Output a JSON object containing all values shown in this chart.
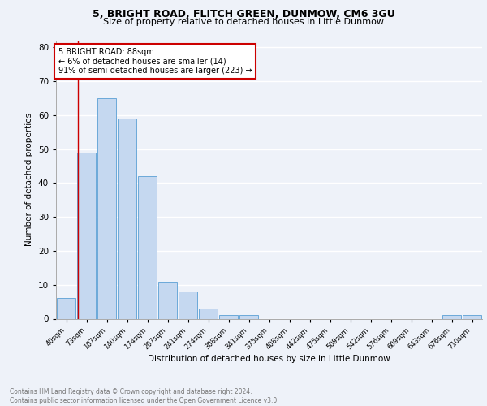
{
  "title1": "5, BRIGHT ROAD, FLITCH GREEN, DUNMOW, CM6 3GU",
  "title2": "Size of property relative to detached houses in Little Dunmow",
  "xlabel": "Distribution of detached houses by size in Little Dunmow",
  "ylabel": "Number of detached properties",
  "bar_labels": [
    "40sqm",
    "73sqm",
    "107sqm",
    "140sqm",
    "174sqm",
    "207sqm",
    "241sqm",
    "274sqm",
    "308sqm",
    "341sqm",
    "375sqm",
    "408sqm",
    "442sqm",
    "475sqm",
    "509sqm",
    "542sqm",
    "576sqm",
    "609sqm",
    "643sqm",
    "676sqm",
    "710sqm"
  ],
  "bar_values": [
    6,
    49,
    65,
    59,
    42,
    11,
    8,
    3,
    1,
    1,
    0,
    0,
    0,
    0,
    0,
    0,
    0,
    0,
    0,
    1,
    1
  ],
  "bar_color": "#c5d8f0",
  "bar_edge_color": "#5a9fd4",
  "vline_color": "#cc0000",
  "annotation_text": "5 BRIGHT ROAD: 88sqm\n← 6% of detached houses are smaller (14)\n91% of semi-detached houses are larger (223) →",
  "annotation_box_color": "#ffffff",
  "annotation_box_edge": "#cc0000",
  "ylim": [
    0,
    82
  ],
  "yticks": [
    0,
    10,
    20,
    30,
    40,
    50,
    60,
    70,
    80
  ],
  "background_color": "#eef2f9",
  "grid_color": "#ffffff",
  "footer": "Contains HM Land Registry data © Crown copyright and database right 2024.\nContains public sector information licensed under the Open Government Licence v3.0."
}
